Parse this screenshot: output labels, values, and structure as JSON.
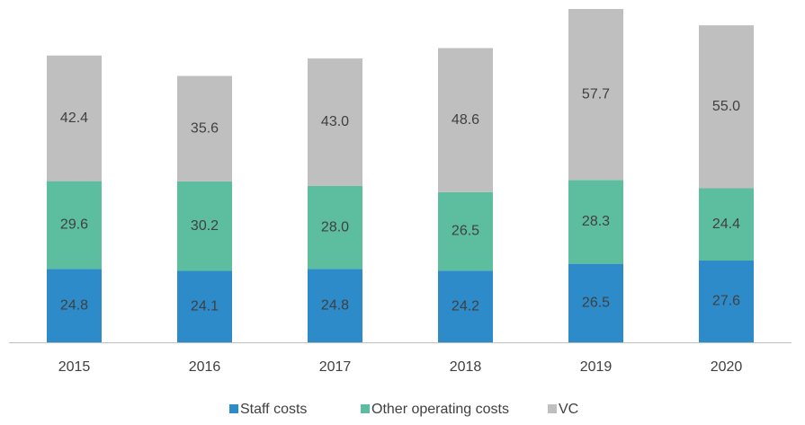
{
  "chart_data": {
    "type": "stacked_bar",
    "categories": [
      "2015",
      "2016",
      "2017",
      "2018",
      "2019",
      "2020"
    ],
    "series": [
      {
        "name": "Staff costs",
        "color": "#2e8bc9",
        "values": [
          24.8,
          24.1,
          24.8,
          24.2,
          26.5,
          27.6
        ],
        "value_labels": [
          "24.8",
          "24.1",
          "24.8",
          "24.2",
          "26.5",
          "27.6"
        ]
      },
      {
        "name": "Other operating costs",
        "color": "#5cbe9f",
        "values": [
          29.6,
          30.2,
          28.0,
          26.5,
          28.3,
          24.4
        ],
        "value_labels": [
          "29.6",
          "30.2",
          "28.0",
          "26.5",
          "28.3",
          "24.4"
        ]
      },
      {
        "name": "VC",
        "color": "#bfbfbf",
        "values": [
          42.4,
          35.6,
          43.0,
          48.6,
          57.7,
          55.0
        ],
        "value_labels": [
          "42.4",
          "35.6",
          "43.0",
          "48.6",
          "57.7",
          "55.0"
        ]
      }
    ]
  }
}
